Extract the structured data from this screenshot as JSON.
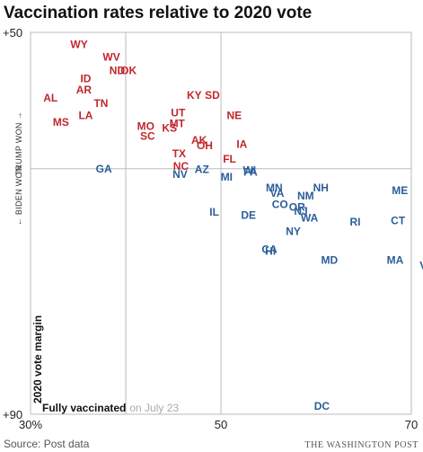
{
  "chart_data": {
    "type": "scatter",
    "title": "Vaccination rates relative to 2020 vote",
    "xlabel": "Fully vaccinated",
    "xlabel_note": "on July 23",
    "ylabel": "2020 vote margin",
    "side_top": "TRUMP WON →",
    "side_bottom": "← BIDEN WON",
    "xlim": [
      30,
      70
    ],
    "ylim": [
      -50,
      90
    ],
    "x_ticks": [
      {
        "value": 30,
        "label": "30%"
      },
      {
        "value": 50,
        "label": "50"
      },
      {
        "value": 70,
        "label": "70"
      }
    ],
    "y_ticks": [
      {
        "value": -50,
        "label": "+50"
      },
      {
        "value": 90,
        "label": "+90"
      }
    ],
    "grid": true,
    "colors": {
      "trump": "#c0272d",
      "biden": "#2a5d9a"
    },
    "series": [
      {
        "key": "trump",
        "points": [
          {
            "label": "WY",
            "x": 35.1,
            "y": -45.5
          },
          {
            "label": "WV",
            "x": 38.5,
            "y": -41
          },
          {
            "label": "ND",
            "x": 39.1,
            "y": -36
          },
          {
            "label": "OK",
            "x": 40.3,
            "y": -36
          },
          {
            "label": "ID",
            "x": 35.8,
            "y": -33
          },
          {
            "label": "AR",
            "x": 35.6,
            "y": -29
          },
          {
            "label": "AL",
            "x": 32.1,
            "y": -26
          },
          {
            "label": "KY",
            "x": 47.2,
            "y": -27
          },
          {
            "label": "SD",
            "x": 49.1,
            "y": -27
          },
          {
            "label": "TN",
            "x": 37.4,
            "y": -24
          },
          {
            "label": "LA",
            "x": 35.8,
            "y": -19.5
          },
          {
            "label": "MS",
            "x": 33.2,
            "y": -17
          },
          {
            "label": "UT",
            "x": 45.5,
            "y": -20.5
          },
          {
            "label": "NE",
            "x": 51.4,
            "y": -19.5
          },
          {
            "label": "MT",
            "x": 45.4,
            "y": -16.5
          },
          {
            "label": "MO",
            "x": 42.1,
            "y": -15.5
          },
          {
            "label": "KS",
            "x": 44.6,
            "y": -15
          },
          {
            "label": "SC",
            "x": 42.3,
            "y": -12
          },
          {
            "label": "AK",
            "x": 47.7,
            "y": -10.5
          },
          {
            "label": "OH",
            "x": 48.3,
            "y": -8.5
          },
          {
            "label": "IA",
            "x": 52.2,
            "y": -9
          },
          {
            "label": "TX",
            "x": 45.6,
            "y": -5.5
          },
          {
            "label": "FL",
            "x": 50.9,
            "y": -3.5
          },
          {
            "label": "NC",
            "x": 45.8,
            "y": -1
          }
        ]
      },
      {
        "key": "biden",
        "points": [
          {
            "label": "GA",
            "x": 37.7,
            "y": 0
          },
          {
            "label": "AZ",
            "x": 48.0,
            "y": 0.2
          },
          {
            "label": "NV",
            "x": 45.7,
            "y": 2
          },
          {
            "label": "MI",
            "x": 50.6,
            "y": 3
          },
          {
            "label": "WI",
            "x": 53.0,
            "y": 0.5
          },
          {
            "label": "PA",
            "x": 53.1,
            "y": 1.3
          },
          {
            "label": "MN",
            "x": 55.6,
            "y": 7
          },
          {
            "label": "NH",
            "x": 60.5,
            "y": 7
          },
          {
            "label": "ME",
            "x": 68.8,
            "y": 8
          },
          {
            "label": "VA",
            "x": 55.9,
            "y": 9
          },
          {
            "label": "NM",
            "x": 58.9,
            "y": 10
          },
          {
            "label": "CO",
            "x": 56.2,
            "y": 13
          },
          {
            "label": "OR",
            "x": 58.0,
            "y": 14
          },
          {
            "label": "NJ",
            "x": 58.4,
            "y": 15.5
          },
          {
            "label": "IL",
            "x": 49.3,
            "y": 15.8
          },
          {
            "label": "WA",
            "x": 59.3,
            "y": 18
          },
          {
            "label": "DE",
            "x": 52.9,
            "y": 17
          },
          {
            "label": "CT",
            "x": 68.6,
            "y": 19
          },
          {
            "label": "RI",
            "x": 64.1,
            "y": 19.5
          },
          {
            "label": "NY",
            "x": 57.6,
            "y": 23
          },
          {
            "label": "CA",
            "x": 55.1,
            "y": 29.5
          },
          {
            "label": "HI",
            "x": 55.2,
            "y": 30.2
          },
          {
            "label": "MD",
            "x": 61.4,
            "y": 33.5
          },
          {
            "label": "MA",
            "x": 68.3,
            "y": 33.5
          },
          {
            "label": "VT",
            "x": 71.6,
            "y": 35.5
          },
          {
            "label": "DC",
            "x": 60.6,
            "y": 87
          }
        ]
      }
    ]
  },
  "footer": {
    "source": "Source: Post data",
    "credit": "THE WASHINGTON POST"
  }
}
